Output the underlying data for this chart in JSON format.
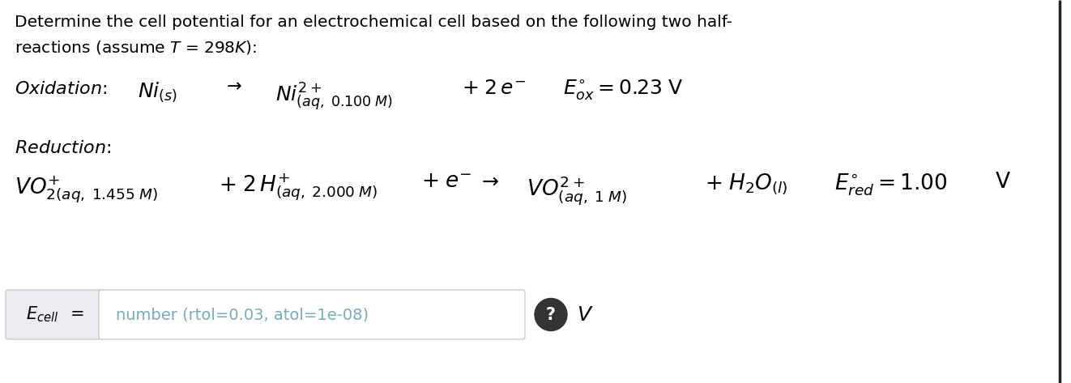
{
  "bg_color": "#ffffff",
  "text_color": "#000000",
  "placeholder_color": "#7aabb8",
  "box_bg": "#eaecef",
  "box_border": "#c8cacf",
  "right_border_color": "#222222",
  "line1": "Determine the cell potential for an electrochemical cell based on the following two half-",
  "line2": "reactions (assume $\\mathit{T}$ = 298$\\mathit{K}$):",
  "ox_label": "Oxidation",
  "ox_eq1": "$Ni_{(s)}$",
  "ox_arrow": "$\\rightarrow$",
  "ox_ni": "$Ni^{2+}_{(aq,\\; 0.100\\; M)}$",
  "ox_plus1": "$+\\; 2\\, e^{-}$",
  "ox_E": "$E^{\\circ}_{ox} = 0.23\\;$V",
  "red_label": "Reduction",
  "red_vo1": "$VO^{+}_{2(aq,\\; 1.455\\; M)}$",
  "red_plus1": "$+\\; 2\\, H^{+}_{(aq,\\; 2.000\\; M)}$",
  "red_plus2": "$+\\; e^{-}$",
  "red_arrow": "$\\rightarrow$",
  "red_vo2": "$VO^{2+}_{(aq,\\; 1\\; M)}$",
  "red_h2o": "$+\\; H_{2}O_{(l)}$",
  "red_E": "$E^{\\circ}_{red} = 1.00$",
  "ecell_placeholder": "number (rtol=0.03, atol=1e-08)",
  "ecell_unit": "$V$"
}
